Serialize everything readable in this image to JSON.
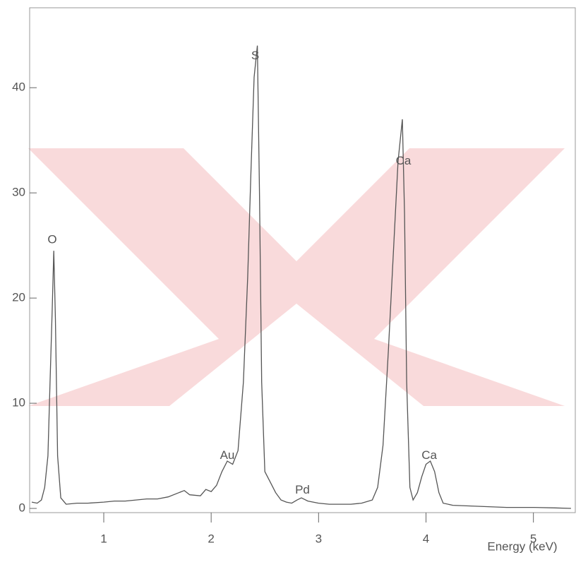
{
  "chart_data": {
    "type": "line",
    "x_label": "Energy (keV)",
    "xlim": [
      0.31,
      5.39
    ],
    "xticks": [
      1,
      2,
      3,
      4,
      5
    ],
    "ylim": [
      -0.4,
      47.6
    ],
    "yticks": [
      0,
      10,
      20,
      30,
      40
    ],
    "grid": false,
    "x": [
      0.33,
      0.38,
      0.42,
      0.45,
      0.48,
      0.5,
      0.52,
      0.535,
      0.55,
      0.57,
      0.6,
      0.65,
      0.75,
      0.85,
      1.0,
      1.1,
      1.2,
      1.3,
      1.4,
      1.5,
      1.6,
      1.7,
      1.75,
      1.8,
      1.9,
      1.95,
      2.0,
      2.05,
      2.1,
      2.15,
      2.2,
      2.25,
      2.3,
      2.34,
      2.37,
      2.4,
      2.43,
      2.45,
      2.47,
      2.5,
      2.55,
      2.6,
      2.65,
      2.7,
      2.75,
      2.8,
      2.84,
      2.9,
      3.0,
      3.1,
      3.2,
      3.3,
      3.4,
      3.5,
      3.55,
      3.6,
      3.65,
      3.7,
      3.74,
      3.78,
      3.8,
      3.82,
      3.85,
      3.88,
      3.92,
      3.96,
      4.0,
      4.04,
      4.08,
      4.12,
      4.16,
      4.25,
      4.5,
      4.75,
      5.0,
      5.2,
      5.35
    ],
    "series": [
      {
        "color": "#555555",
        "values": [
          0.6,
          0.5,
          0.8,
          2,
          5,
          12,
          19,
          24.5,
          18,
          5,
          1,
          0.4,
          0.5,
          0.5,
          0.6,
          0.7,
          0.7,
          0.8,
          0.9,
          0.9,
          1.1,
          1.5,
          1.7,
          1.3,
          1.2,
          1.8,
          1.6,
          2.2,
          3.5,
          4.5,
          4.2,
          5.5,
          12,
          22,
          32,
          41,
          44,
          30,
          12,
          3.5,
          2.5,
          1.5,
          0.8,
          0.6,
          0.5,
          0.8,
          1.0,
          0.7,
          0.5,
          0.4,
          0.4,
          0.4,
          0.5,
          0.8,
          2,
          6,
          15,
          25,
          33,
          37,
          28,
          12,
          2,
          0.8,
          1.5,
          3,
          4.2,
          4.5,
          3.5,
          1.5,
          0.5,
          0.3,
          0.2,
          0.1,
          0.1,
          0.05,
          0.0
        ]
      }
    ],
    "annotations": [
      {
        "text": "O",
        "x": 0.52,
        "y": 25.5
      },
      {
        "text": "S",
        "x": 2.41,
        "y": 43
      },
      {
        "text": "Ca",
        "x": 3.79,
        "y": 33
      },
      {
        "text": "Au",
        "x": 2.15,
        "y": 5
      },
      {
        "text": "Pd",
        "x": 2.85,
        "y": 1.7
      },
      {
        "text": "Ca",
        "x": 4.03,
        "y": 5
      }
    ]
  }
}
